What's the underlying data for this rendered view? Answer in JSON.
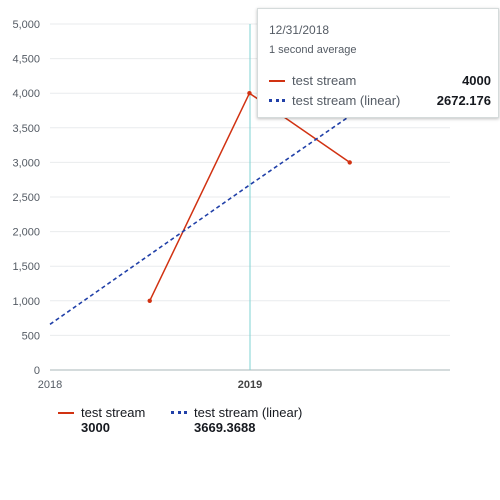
{
  "chart_data": {
    "type": "line",
    "x_ticks": [
      "2018",
      "2019"
    ],
    "y_ticks": [
      "0",
      "500",
      "1,000",
      "1,500",
      "2,000",
      "2,500",
      "3,000",
      "3,500",
      "4,000",
      "4,500",
      "5,000"
    ],
    "ylim": [
      0,
      5000
    ],
    "grid": true,
    "highlighted_x": "2019",
    "series": [
      {
        "name": "test stream",
        "color": "#d13212",
        "style": "solid",
        "points": [
          {
            "x": "2018-07-02",
            "y": 1000
          },
          {
            "x": "2018-12-31",
            "y": 4000
          },
          {
            "x": "2019-07-02",
            "y": 3000
          }
        ]
      },
      {
        "name": "test stream (linear)",
        "color": "#2140a8",
        "style": "dotted",
        "points": [
          {
            "x": "2018-01-01",
            "y": 660
          },
          {
            "x": "2018-12-31",
            "y": 2672.176
          },
          {
            "x": "2019-07-02",
            "y": 3669.3688
          }
        ]
      }
    ]
  },
  "tooltip": {
    "date": "12/31/2018",
    "subtitle": "1 second average",
    "rows": [
      {
        "name": "test stream",
        "value": "4000"
      },
      {
        "name": "test stream (linear)",
        "value": "2672.176"
      }
    ]
  },
  "legend": {
    "items": [
      {
        "name": "test stream",
        "value": "3000"
      },
      {
        "name": "test stream (linear)",
        "value": "3669.3688"
      }
    ]
  }
}
